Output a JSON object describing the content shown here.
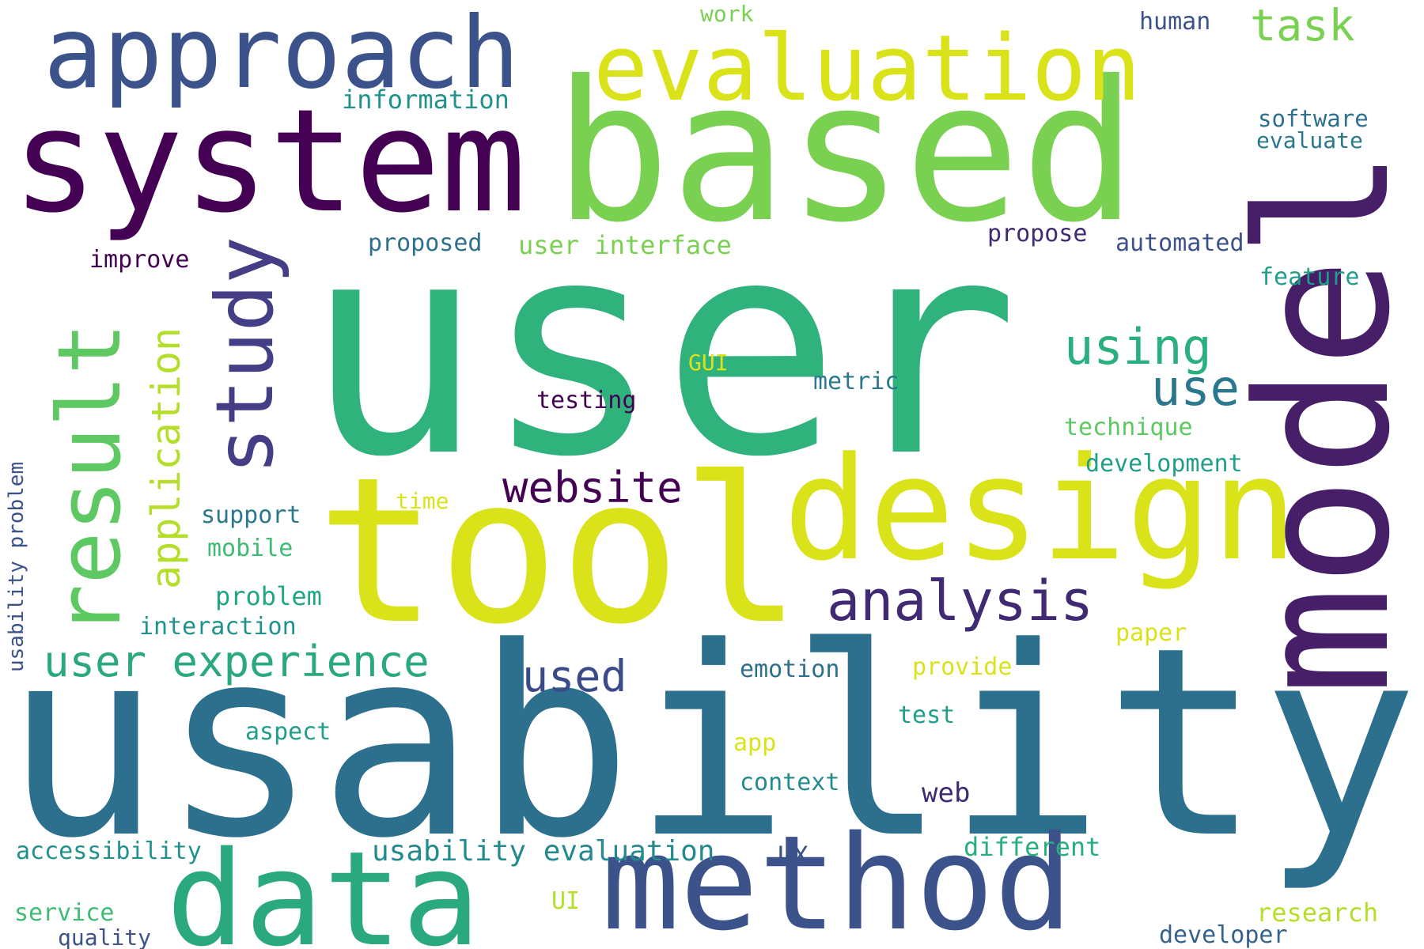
{
  "words": [
    {
      "text": "user",
      "color": "#30b27c"
    },
    {
      "text": "usability",
      "color": "#2d708e"
    },
    {
      "text": "based",
      "color": "#7ad151"
    },
    {
      "text": "tool",
      "color": "#dae319"
    },
    {
      "text": "model",
      "color": "#471f69"
    },
    {
      "text": "system",
      "color": "#440154"
    },
    {
      "text": "method",
      "color": "#3b528b"
    },
    {
      "text": "design",
      "color": "#dae319"
    },
    {
      "text": "data",
      "color": "#2aa87e"
    },
    {
      "text": "approach",
      "color": "#3b528b"
    },
    {
      "text": "evaluation",
      "color": "#dae319"
    },
    {
      "text": "study",
      "color": "#433e85"
    },
    {
      "text": "result",
      "color": "#5ec962"
    },
    {
      "text": "analysis",
      "color": "#3f2a73"
    },
    {
      "text": "application",
      "color": "#b5de2b"
    },
    {
      "text": "user experience",
      "color": "#2aa87e"
    },
    {
      "text": "website",
      "color": "#440154"
    },
    {
      "text": "using",
      "color": "#2ab07f"
    },
    {
      "text": "used",
      "color": "#3b4b8a"
    },
    {
      "text": "use",
      "color": "#2a788e"
    },
    {
      "text": "task",
      "color": "#7ad151"
    },
    {
      "text": "usability evaluation",
      "color": "#238a8d"
    },
    {
      "text": "information",
      "color": "#21918c"
    },
    {
      "text": "user interface",
      "color": "#7ad151"
    },
    {
      "text": "usability problem",
      "color": "#3b528b"
    },
    {
      "text": "problem",
      "color": "#21a685"
    },
    {
      "text": "different",
      "color": "#29af7f"
    },
    {
      "text": "research",
      "color": "#b5de2b"
    },
    {
      "text": "developer",
      "color": "#33638d"
    },
    {
      "text": "accessibility",
      "color": "#21918c"
    },
    {
      "text": "software",
      "color": "#2d708e"
    },
    {
      "text": "evaluate",
      "color": "#2a788e"
    },
    {
      "text": "feature",
      "color": "#1f9e89"
    },
    {
      "text": "automated",
      "color": "#3b528b"
    },
    {
      "text": "technique",
      "color": "#5ec962"
    },
    {
      "text": "development",
      "color": "#1f9e89"
    },
    {
      "text": "web",
      "color": "#3f2a73"
    },
    {
      "text": "proposed",
      "color": "#2d708e"
    },
    {
      "text": "improve",
      "color": "#440154"
    },
    {
      "text": "propose",
      "color": "#3f2a73"
    },
    {
      "text": "human",
      "color": "#3b528b"
    },
    {
      "text": "work",
      "color": "#7ad151"
    },
    {
      "text": "metric",
      "color": "#2a788e"
    },
    {
      "text": "testing",
      "color": "#440154"
    },
    {
      "text": "GUI",
      "color": "#dae319"
    },
    {
      "text": "support",
      "color": "#2a788e"
    },
    {
      "text": "mobile",
      "color": "#3fbc73"
    },
    {
      "text": "time",
      "color": "#dae319"
    },
    {
      "text": "interaction",
      "color": "#21918c"
    },
    {
      "text": "paper",
      "color": "#dae319"
    },
    {
      "text": "provide",
      "color": "#dae319"
    },
    {
      "text": "emotion",
      "color": "#2d708e"
    },
    {
      "text": "test",
      "color": "#1f9e89"
    },
    {
      "text": "aspect",
      "color": "#1f9e89"
    },
    {
      "text": "app",
      "color": "#dae319"
    },
    {
      "text": "context",
      "color": "#238a8d"
    },
    {
      "text": "UX",
      "color": "#3b528b"
    },
    {
      "text": "UI",
      "color": "#b5de2b"
    },
    {
      "text": "service",
      "color": "#3fbc73"
    },
    {
      "text": "quality",
      "color": "#3b528b"
    }
  ]
}
